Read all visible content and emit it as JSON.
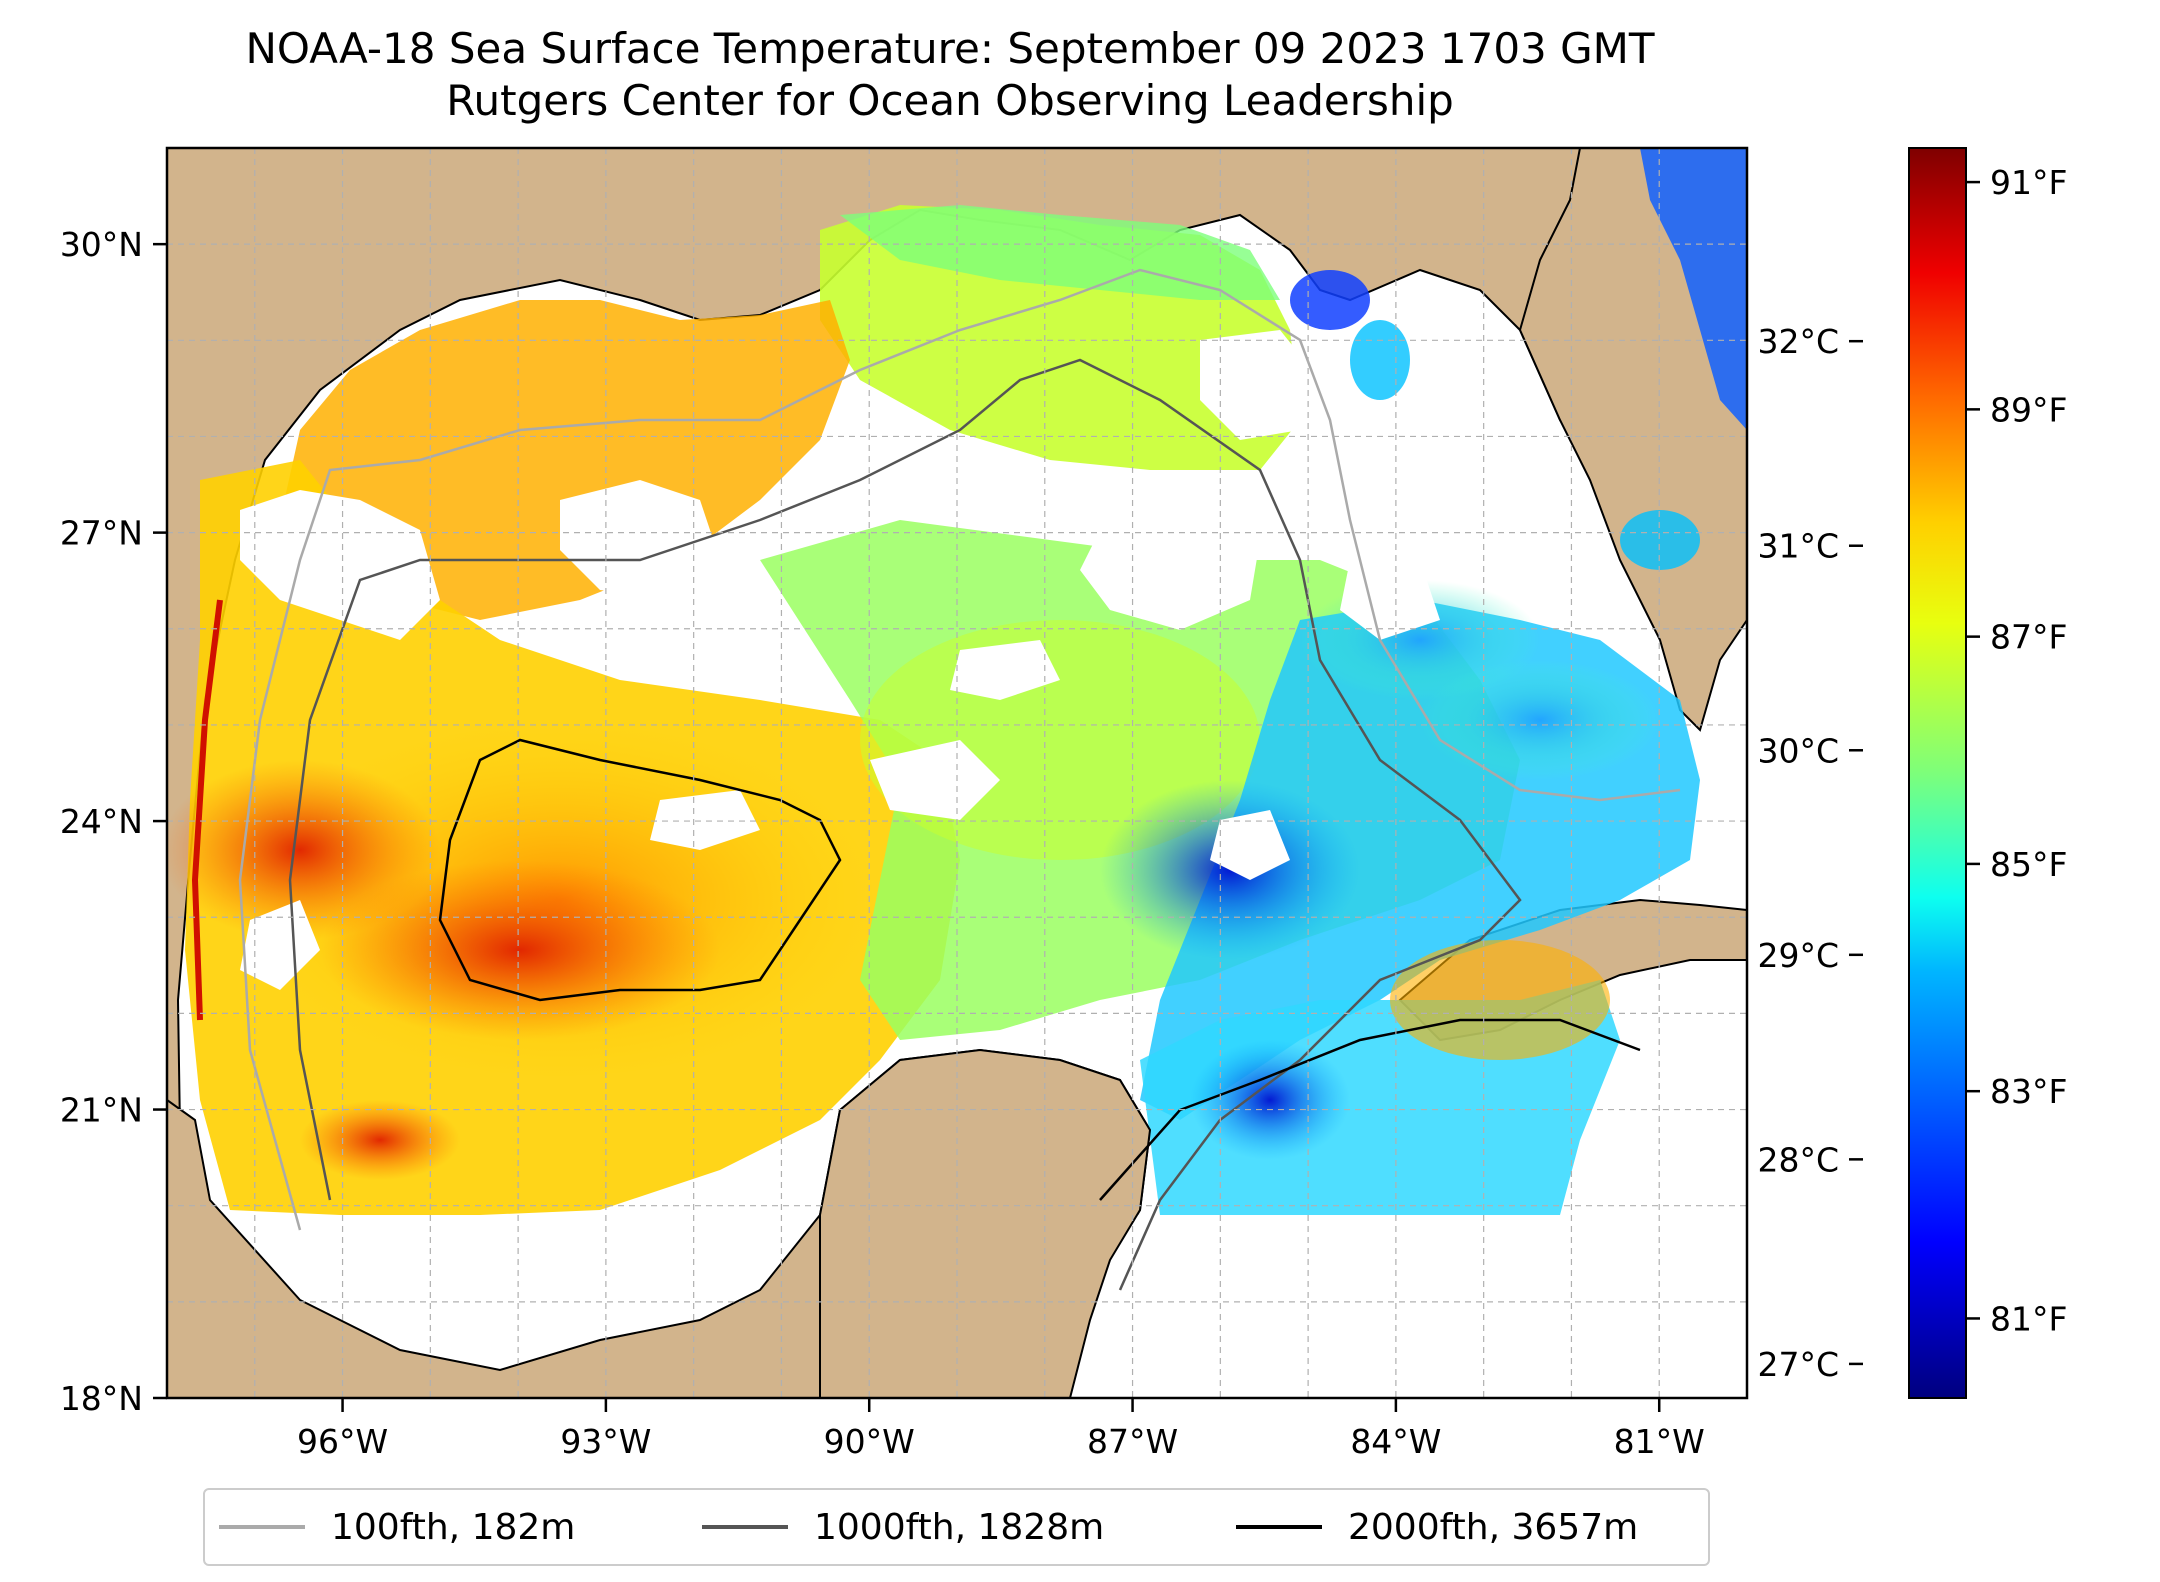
{
  "title": {
    "line1": "NOAA-18 Sea Surface Temperature: September 09 2023 1703 GMT",
    "line2": "Rutgers Center for Ocean Observing Leadership"
  },
  "map": {
    "lat_range": [
      18,
      31
    ],
    "lon_range": [
      -98,
      -80
    ],
    "lat_ticks": [
      "18°N",
      "21°N",
      "24°N",
      "27°N",
      "30°N"
    ],
    "lat_tick_values": [
      18,
      21,
      24,
      27,
      30
    ],
    "lon_ticks": [
      "96°W",
      "93°W",
      "90°W",
      "87°W",
      "84°W",
      "81°W"
    ],
    "lon_tick_values": [
      -96,
      -93,
      -90,
      -87,
      -84,
      -81
    ],
    "gridlines": true,
    "colors": {
      "land": "#d2b48c",
      "no_data": "#ffffff",
      "grid": "#b0b0b0"
    }
  },
  "colorbar": {
    "colormap": "jet",
    "fahrenheit_ticks": [
      "81°F",
      "83°F",
      "85°F",
      "87°F",
      "89°F",
      "91°F"
    ],
    "fahrenheit_values": [
      81,
      83,
      85,
      87,
      89,
      91
    ],
    "celsius_ticks": [
      "27°C",
      "28°C",
      "29°C",
      "30°C",
      "31°C",
      "32°C"
    ],
    "celsius_values": [
      27,
      28,
      29,
      30,
      31,
      32
    ],
    "range_f": [
      80.3,
      91.3
    ]
  },
  "legend": {
    "items": [
      {
        "label": "100fth, 182m",
        "color": "#aaaaaa"
      },
      {
        "label": "1000fth, 1828m",
        "color": "#555555"
      },
      {
        "label": "2000fth, 3657m",
        "color": "#000000"
      }
    ]
  }
}
